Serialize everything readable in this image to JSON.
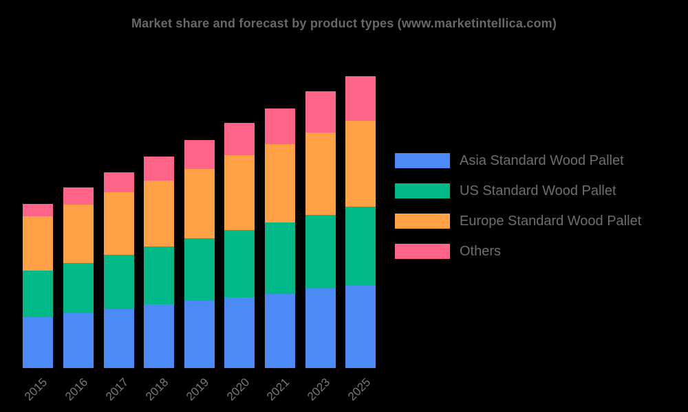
{
  "title": "Market share and forecast by product types (www.marketintellica.com)",
  "colors": {
    "background": "#000000",
    "title_text": "#686868",
    "axis_tick_text": "#7a7a7a",
    "legend_text": "#6e6e6e",
    "asia_blue": "#4C8BF5",
    "us_green": "#01B887",
    "europe_orange": "#FFA144",
    "others_pink": "#FD6487"
  },
  "chart_data": {
    "type": "bar",
    "stacked": true,
    "title": "Market share and forecast by product types (www.marketintellica.com)",
    "categories": [
      "2015",
      "2016",
      "2017",
      "2018",
      "2019",
      "2020",
      "2021",
      "2023",
      "2025"
    ],
    "series": [
      {
        "name": "Asia Standard Wood Pallet",
        "color": "#4C8BF5",
        "values": [
          17.3,
          18.8,
          20.2,
          21.9,
          23.1,
          24.3,
          25.5,
          27.3,
          28.2
        ]
      },
      {
        "name": "US Standard Wood Pallet",
        "color": "#01B887",
        "values": [
          16.0,
          17.1,
          18.6,
          19.8,
          21.3,
          23.0,
          24.3,
          25.2,
          27.1
        ]
      },
      {
        "name": "Europe Standard Wood Pallet",
        "color": "#FFA144",
        "values": [
          18.6,
          20.0,
          21.4,
          22.5,
          23.8,
          25.5,
          26.9,
          28.1,
          29.3
        ]
      },
      {
        "name": "Others",
        "color": "#FD6487",
        "values": [
          4.3,
          5.9,
          6.8,
          8.2,
          9.8,
          11.1,
          12.3,
          14.2,
          15.4
        ]
      }
    ],
    "totals": [
      56.2,
      61.8,
      67.0,
      72.4,
      78.0,
      83.9,
      89.0,
      94.8,
      100.0
    ],
    "units": "relative market share (no numeric axis shown; values normalized so the 2025 total = 100)",
    "xlabel": "",
    "ylabel": "",
    "ylim": [
      0,
      100
    ],
    "grid": false,
    "y_axis_visible": false,
    "legend_position": "right",
    "x_tick_rotation_deg": -45
  },
  "legend": {
    "items": [
      {
        "label": "Asia Standard Wood Pallet"
      },
      {
        "label": "US Standard Wood Pallet"
      },
      {
        "label": "Europe Standard Wood Pallet"
      },
      {
        "label": "Others"
      }
    ]
  }
}
